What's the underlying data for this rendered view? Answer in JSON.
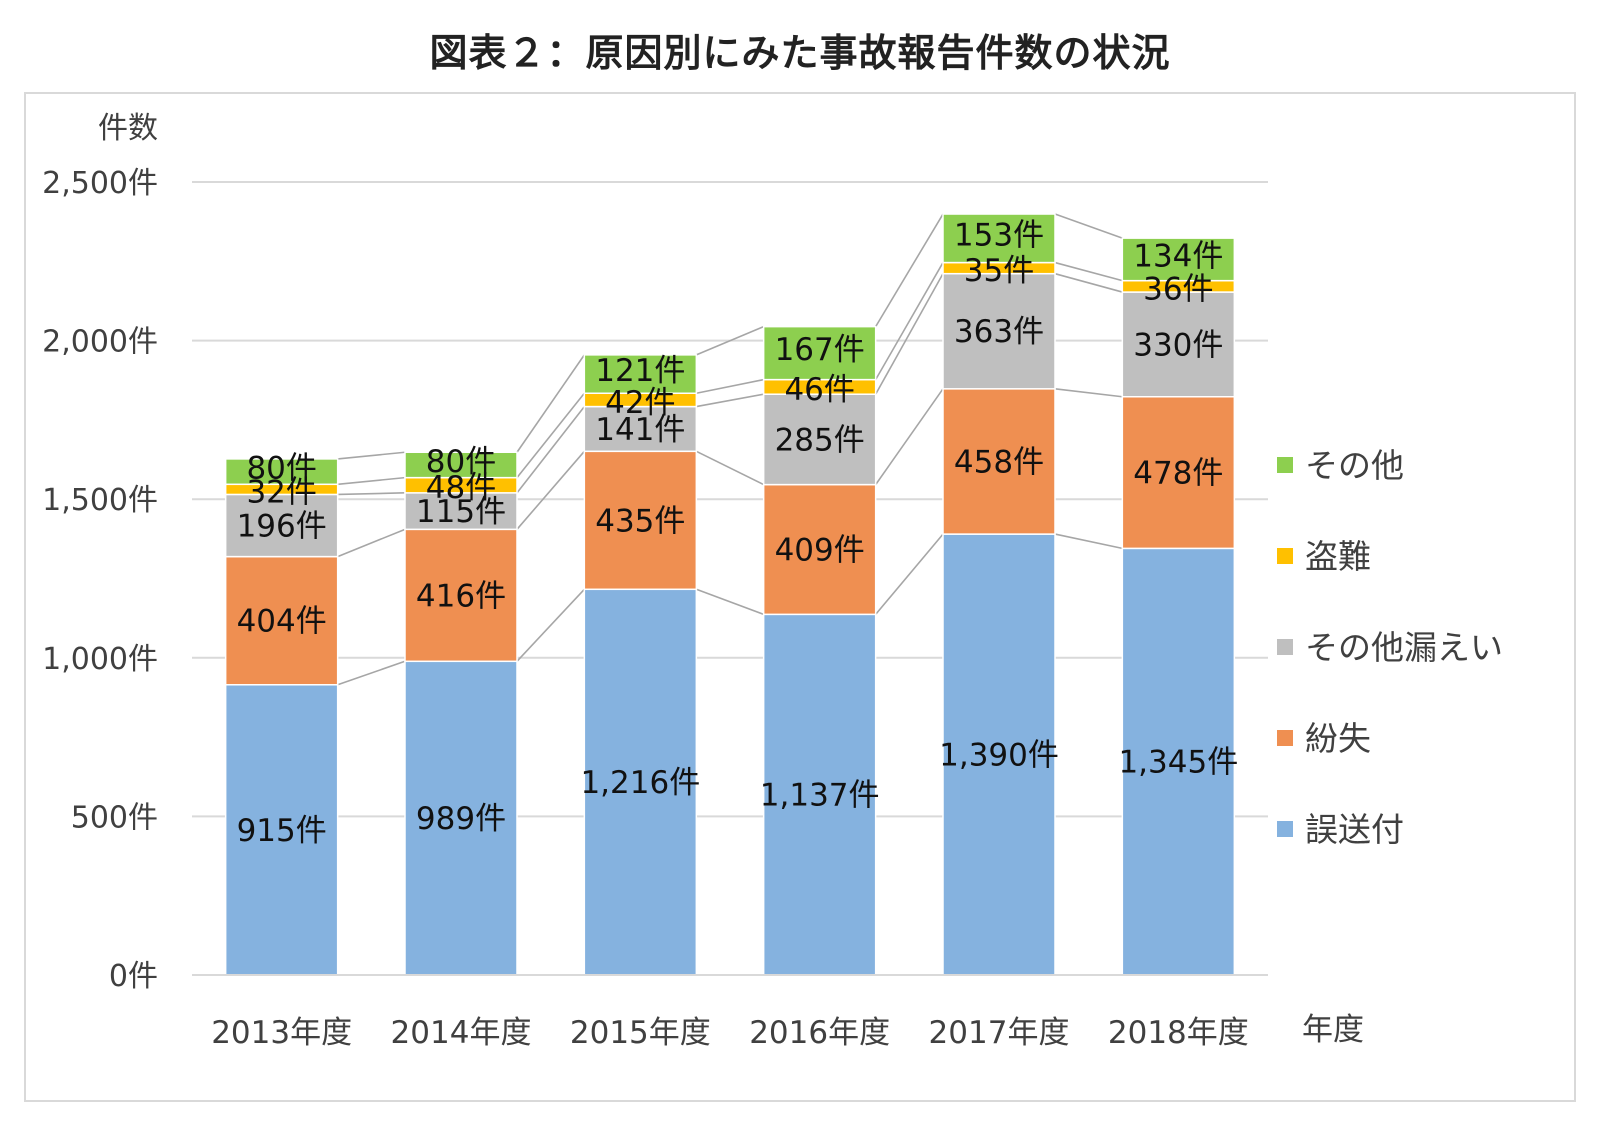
{
  "title": "図表２：原因別にみた事故報告件数の状況",
  "chart_data": {
    "type": "bar",
    "stacked": true,
    "title": "図表２：原因別にみた事故報告件数の状況",
    "ylabel": "件数",
    "xlabel": "年度",
    "ylim": [
      0,
      2500
    ],
    "y_ticks": [
      0,
      500,
      1000,
      1500,
      2000,
      2500
    ],
    "y_tick_labels": [
      "0件",
      "500件",
      "1,000件",
      "1,500件",
      "2,000件",
      "2,500件"
    ],
    "grid": true,
    "legend_position": "right",
    "categories": [
      "2013年度",
      "2014年度",
      "2015年度",
      "2016年度",
      "2017年度",
      "2018年度"
    ],
    "series": [
      {
        "name": "誤送付",
        "color": "#85b2df",
        "values": [
          915,
          989,
          1216,
          1137,
          1390,
          1345
        ],
        "labels": [
          "915件",
          "989件",
          "1,216件",
          "1,137件",
          "1,390件",
          "1,345件"
        ]
      },
      {
        "name": "紛失",
        "color": "#ef8f51",
        "values": [
          404,
          416,
          435,
          409,
          458,
          478
        ],
        "labels": [
          "404件",
          "416件",
          "435件",
          "409件",
          "458件",
          "478件"
        ]
      },
      {
        "name": "その他漏えい",
        "color": "#bfbfbf",
        "values": [
          196,
          115,
          141,
          285,
          363,
          330
        ],
        "labels": [
          "196件",
          "115件",
          "141件",
          "285件",
          "363件",
          "330件"
        ]
      },
      {
        "name": "盗難",
        "color": "#ffc000",
        "values": [
          32,
          48,
          42,
          46,
          35,
          36
        ],
        "labels": [
          "32件",
          "48件",
          "42件",
          "46件",
          "35件",
          "36件"
        ]
      },
      {
        "name": "その他",
        "color": "#8dcf4f",
        "values": [
          80,
          80,
          121,
          167,
          153,
          134
        ],
        "labels": [
          "80件",
          "80件",
          "121件",
          "167件",
          "153件",
          "134件"
        ]
      }
    ]
  }
}
